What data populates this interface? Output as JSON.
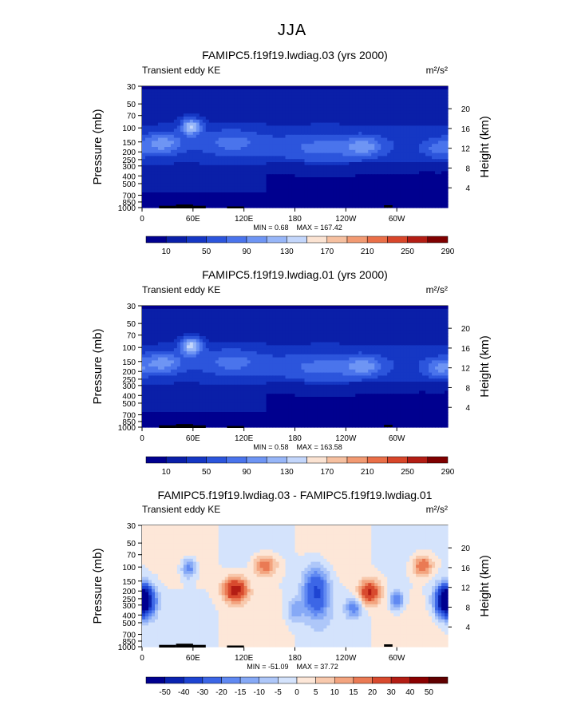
{
  "page_title": "JJA",
  "chart_data": [
    {
      "type": "heatmap",
      "title": "FAMIPC5.f19f19.lwdiag.03 (yrs 2000)",
      "subtitle_left": "Transient eddy KE",
      "units": "m²/s²",
      "ylabel": "Pressure (mb)",
      "ylabel_right": "Height (km)",
      "x_ticks": [
        "0",
        "60E",
        "120E",
        "180",
        "120W",
        "60W"
      ],
      "y_ticks": [
        "30",
        "50",
        "70",
        "100",
        "150",
        "200",
        "250",
        "300",
        "400",
        "500",
        "700",
        "850",
        "1000"
      ],
      "y_right_ticks": [
        "20",
        "16",
        "12",
        "8",
        "4"
      ],
      "min_text": "MIN =    0.68",
      "max_text": "MAX =  167.42",
      "min": 0.68,
      "max": 167.42,
      "colorbar_labels": [
        "10",
        "50",
        "90",
        "130",
        "170",
        "210",
        "250",
        "290"
      ]
    },
    {
      "type": "heatmap",
      "title": "FAMIPC5.f19f19.lwdiag.01 (yrs 2000)",
      "subtitle_left": "Transient eddy KE",
      "units": "m²/s²",
      "ylabel": "Pressure (mb)",
      "ylabel_right": "Height (km)",
      "x_ticks": [
        "0",
        "60E",
        "120E",
        "180",
        "120W",
        "60W"
      ],
      "y_ticks": [
        "30",
        "50",
        "70",
        "100",
        "150",
        "200",
        "250",
        "300",
        "400",
        "500",
        "700",
        "850",
        "1000"
      ],
      "y_right_ticks": [
        "20",
        "16",
        "12",
        "8",
        "4"
      ],
      "min_text": "MIN =    0.58",
      "max_text": "MAX =  163.58",
      "min": 0.58,
      "max": 163.58,
      "colorbar_labels": [
        "10",
        "50",
        "90",
        "130",
        "170",
        "210",
        "250",
        "290"
      ]
    },
    {
      "type": "heatmap",
      "title": "FAMIPC5.f19f19.lwdiag.03 - FAMIPC5.f19f19.lwdiag.01",
      "subtitle_left": "Transient eddy KE",
      "units": "m²/s²",
      "ylabel": "Pressure (mb)",
      "ylabel_right": "Height (km)",
      "x_ticks": [
        "0",
        "60E",
        "120E",
        "180",
        "120W",
        "60W"
      ],
      "y_ticks": [
        "30",
        "50",
        "70",
        "100",
        "150",
        "200",
        "250",
        "300",
        "400",
        "500",
        "700",
        "850",
        "1000"
      ],
      "y_right_ticks": [
        "20",
        "16",
        "12",
        "8",
        "4"
      ],
      "min_text": "MIN = -51.09",
      "max_text": "MAX =  37.72",
      "min": -51.09,
      "max": 37.72,
      "colorbar_labels": [
        "-50",
        "-40",
        "-30",
        "-20",
        "-15",
        "-10",
        "-5",
        "0",
        "5",
        "10",
        "15",
        "20",
        "30",
        "40",
        "50"
      ]
    }
  ],
  "colors": {
    "seq": [
      "#00008f",
      "#0a1fa8",
      "#1537c4",
      "#2c55dc",
      "#4a74ec",
      "#6e95f4",
      "#97b6f8",
      "#c3d6fb",
      "#fbe3d2",
      "#f6c0a0",
      "#f29a72",
      "#ea6f48",
      "#d8462a",
      "#b31d14",
      "#7f0000"
    ],
    "div": [
      "#00008f",
      "#0a23b0",
      "#1e44d2",
      "#3c66e6",
      "#6089f2",
      "#86a9f6",
      "#aec7f9",
      "#d4e3fc",
      "#fde7d8",
      "#f8c9ad",
      "#f3a47f",
      "#ea7a54",
      "#d84a2e",
      "#b31d14",
      "#8a0000",
      "#600000"
    ]
  }
}
